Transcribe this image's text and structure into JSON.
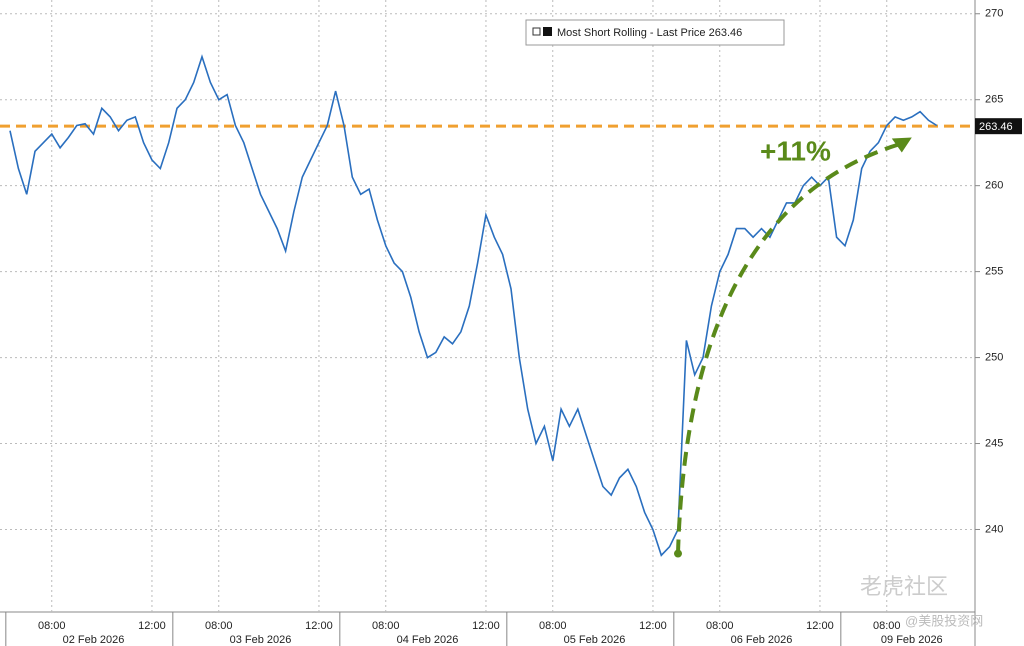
{
  "chart_data": {
    "type": "line",
    "categories": [
      null,
      null,
      null,
      null,
      null,
      "08:00",
      null,
      null,
      null,
      null,
      null,
      null,
      null,
      null,
      null,
      null,
      null,
      "12:00",
      null,
      null,
      null,
      null,
      null,
      null,
      null,
      "08:00",
      null,
      null,
      null,
      null,
      null,
      null,
      null,
      null,
      null,
      null,
      null,
      "12:00",
      null,
      null,
      null,
      null,
      null,
      null,
      null,
      "08:00",
      null,
      null,
      null,
      null,
      null,
      null,
      null,
      null,
      null,
      null,
      null,
      "12:00",
      null,
      null,
      null,
      null,
      null,
      null,
      null,
      "08:00",
      null,
      null,
      null,
      null,
      null,
      null,
      null,
      null,
      null,
      null,
      null,
      "12:00",
      null,
      null,
      null,
      null,
      null,
      null,
      null,
      "08:00",
      null,
      null,
      null,
      null,
      null,
      null,
      null,
      null,
      null,
      null,
      null,
      "12:00",
      null,
      null,
      null,
      null,
      null,
      null,
      null,
      "08:00",
      null,
      null,
      null,
      null,
      null,
      null
    ],
    "date_categories": [
      null,
      null,
      null,
      null,
      null,
      null,
      null,
      null,
      null,
      null,
      "02 Feb 2026",
      null,
      null,
      null,
      null,
      null,
      null,
      null,
      null,
      null,
      null,
      null,
      null,
      null,
      null,
      null,
      null,
      null,
      null,
      null,
      "03 Feb 2026",
      null,
      null,
      null,
      null,
      null,
      null,
      null,
      null,
      null,
      null,
      null,
      null,
      null,
      null,
      null,
      null,
      null,
      null,
      null,
      "04 Feb 2026",
      null,
      null,
      null,
      null,
      null,
      null,
      null,
      null,
      null,
      null,
      null,
      null,
      null,
      null,
      null,
      null,
      null,
      null,
      null,
      "05 Feb 2026",
      null,
      null,
      null,
      null,
      null,
      null,
      null,
      null,
      null,
      null,
      null,
      null,
      null,
      null,
      null,
      null,
      null,
      null,
      null,
      "06 Feb 2026",
      null,
      null,
      null,
      null,
      null,
      null,
      null,
      null,
      null,
      null,
      null,
      null,
      null,
      null,
      null,
      null,
      null,
      "09 Feb 2026",
      null,
      null,
      null
    ],
    "series": [
      {
        "name": "Most Short Rolling - Last Price",
        "color": "#2a6fbf",
        "values": [
          263.2,
          261,
          259.5,
          262,
          262.5,
          263,
          262.2,
          262.8,
          263.5,
          263.6,
          263,
          264.5,
          264,
          263.2,
          263.8,
          264,
          262.5,
          261.5,
          261,
          262.5,
          264.5,
          265,
          266,
          267.5,
          266,
          265,
          265.3,
          263.5,
          262.5,
          261,
          259.5,
          258.5,
          257.5,
          256.2,
          258.5,
          260.5,
          261.5,
          262.5,
          263.5,
          265.5,
          263.5,
          260.5,
          259.5,
          259.8,
          258,
          256.5,
          255.5,
          255,
          253.5,
          251.5,
          250,
          250.3,
          251.2,
          250.8,
          251.5,
          253,
          255.5,
          258.3,
          257,
          256,
          254,
          250,
          247,
          245,
          246,
          244,
          247,
          246,
          247,
          245.5,
          244,
          242.5,
          242,
          243,
          243.5,
          242.5,
          241,
          240,
          238.5,
          239,
          240,
          251,
          249,
          250,
          253,
          255,
          256,
          257.5,
          257.5,
          257,
          257.5,
          257,
          258,
          259,
          259,
          260,
          260.5,
          260,
          260.5,
          257,
          256.5,
          258,
          261,
          262,
          262.5,
          263.5,
          264,
          263.8,
          264,
          264.3,
          263.8,
          263.5
        ]
      }
    ],
    "last_price": 263.46,
    "last_price_color": "#f0a030",
    "annotation": {
      "text": "+11%",
      "color": "#5a8a1a",
      "x": [
        80,
        108
      ],
      "y": [
        238.6,
        262.8
      ]
    },
    "ylim": [
      235.2,
      270.8
    ],
    "yticks": [
      240,
      245,
      250,
      255,
      260,
      265,
      270
    ],
    "grid": true,
    "watermark": [
      "老虎社区",
      "@美股投资网"
    ]
  }
}
